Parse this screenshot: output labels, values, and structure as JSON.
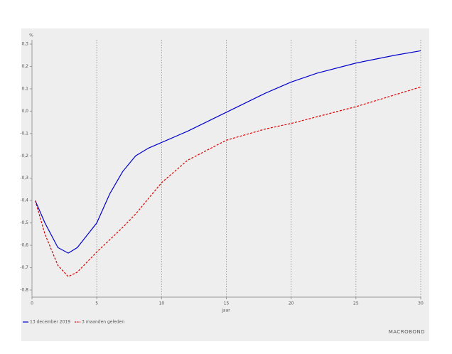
{
  "chart_data": {
    "type": "line",
    "y_unit": "%",
    "x_label": "jaar",
    "watermark": "MACROBOND",
    "xlim": [
      0,
      30
    ],
    "xticks": [
      0,
      5,
      10,
      15,
      20,
      25,
      30
    ],
    "ylim": [
      -0.8,
      0.3
    ],
    "yticks": [
      {
        "value": 0.3,
        "label": "0,3"
      },
      {
        "value": 0.2,
        "label": "0,2"
      },
      {
        "value": 0.1,
        "label": "0,1"
      },
      {
        "value": 0,
        "label": "0,0"
      },
      {
        "value": -0.1,
        "label": "-0,1"
      },
      {
        "value": -0.2,
        "label": "-0,2"
      },
      {
        "value": -0.3,
        "label": "-0,3"
      },
      {
        "value": -0.4,
        "label": "-0,4"
      },
      {
        "value": -0.5,
        "label": "-0,5"
      },
      {
        "value": -0.6,
        "label": "-0,6"
      },
      {
        "value": -0.7,
        "label": "-0,7"
      },
      {
        "value": -0.8,
        "label": "-0,8"
      }
    ],
    "xgrid": true,
    "series": [
      {
        "name": "13 december 2019",
        "color": "#0000cc",
        "dash": false,
        "x": [
          0.25,
          1,
          2,
          2.8,
          3.5,
          5,
          6,
          7,
          8,
          9,
          10,
          12,
          15,
          18,
          20,
          22,
          25,
          28,
          30
        ],
        "values": [
          -0.4,
          -0.5,
          -0.61,
          -0.635,
          -0.61,
          -0.5,
          -0.37,
          -0.27,
          -0.2,
          -0.165,
          -0.14,
          -0.09,
          -0.005,
          0.08,
          0.13,
          0.17,
          0.215,
          0.25,
          0.27
        ]
      },
      {
        "name": "3 maanden geleden",
        "color": "#dd0000",
        "dash": true,
        "x": [
          0.25,
          1,
          2,
          2.8,
          3.5,
          5,
          7,
          8,
          10,
          12,
          15,
          18,
          20,
          25,
          30
        ],
        "values": [
          -0.4,
          -0.55,
          -0.69,
          -0.74,
          -0.72,
          -0.63,
          -0.52,
          -0.46,
          -0.32,
          -0.22,
          -0.13,
          -0.08,
          -0.055,
          0.02,
          0.108
        ]
      }
    ]
  }
}
